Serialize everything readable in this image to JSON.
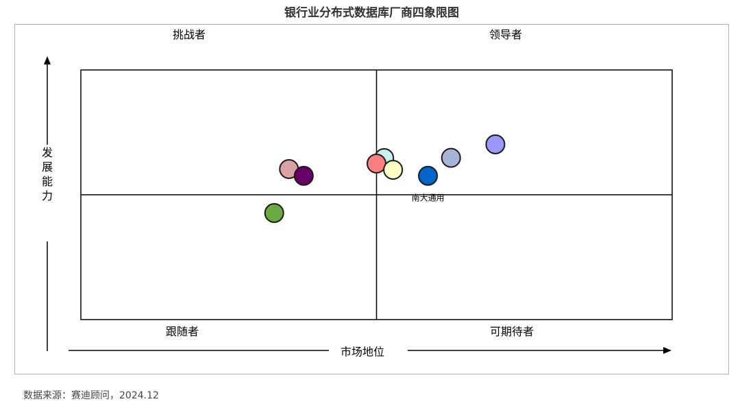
{
  "chart_data": {
    "type": "scatter",
    "title": "银行业分布式数据库厂商四象限图",
    "xlabel": "市场地位",
    "ylabel": "发展能力",
    "xlim": [
      0,
      100
    ],
    "ylim": [
      0,
      100
    ],
    "grid": false,
    "quadrants": {
      "top_left": "挑战者",
      "top_right": "领导者",
      "bottom_left": "跟随者",
      "bottom_right": "可期待者"
    },
    "points": [
      {
        "x": 70.1,
        "y": 70.2,
        "color": "#9999ff",
        "label": ""
      },
      {
        "x": 62.6,
        "y": 64.8,
        "color": "#a6b4d6",
        "label": ""
      },
      {
        "x": 51.3,
        "y": 64.7,
        "color": "#c6f2f2",
        "label": ""
      },
      {
        "x": 50.0,
        "y": 62.5,
        "color": "#ff7f7f",
        "label": ""
      },
      {
        "x": 52.8,
        "y": 60.0,
        "color": "#ffffc4",
        "label": ""
      },
      {
        "x": 58.7,
        "y": 57.6,
        "color": "#0066cc",
        "label": "南大通用"
      },
      {
        "x": 35.2,
        "y": 60.3,
        "color": "#d9a1a1",
        "label": ""
      },
      {
        "x": 37.7,
        "y": 57.6,
        "color": "#660066",
        "label": ""
      },
      {
        "x": 32.7,
        "y": 42.7,
        "color": "#6aaa3f",
        "label": ""
      }
    ]
  },
  "source": "数据来源：赛迪顾问，2024.12"
}
